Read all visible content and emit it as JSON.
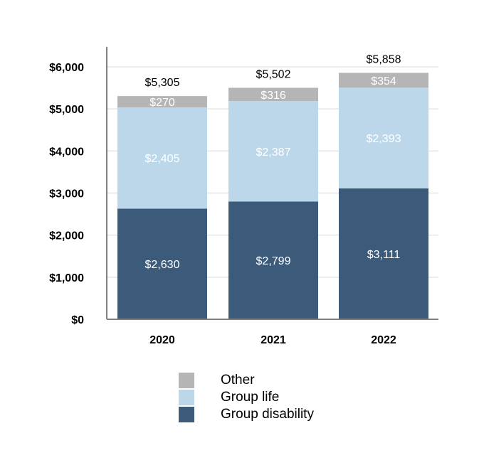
{
  "chart_data": {
    "type": "bar",
    "stacked": true,
    "categories": [
      "2020",
      "2021",
      "2022"
    ],
    "series": [
      {
        "name": "Group disability",
        "values": [
          2630,
          2799,
          3111
        ],
        "labels": [
          "$2,630",
          "$2,799",
          "$3,111"
        ],
        "color": "#3c5a7a"
      },
      {
        "name": "Group life",
        "values": [
          2405,
          2387,
          2393
        ],
        "labels": [
          "$2,405",
          "$2,387",
          "$2,393"
        ],
        "color": "#bcd7ea"
      },
      {
        "name": "Other",
        "values": [
          270,
          316,
          354
        ],
        "labels": [
          "$270",
          "$316",
          "$354"
        ],
        "color": "#b5b5b5"
      }
    ],
    "totals": [
      5305,
      5502,
      5858
    ],
    "total_labels": [
      "$5,305",
      "$5,502",
      "$5,858"
    ],
    "yticks": [
      0,
      1000,
      2000,
      3000,
      4000,
      5000,
      6000
    ],
    "ytick_labels": [
      "$0",
      "$1,000",
      "$2,000",
      "$3,000",
      "$4,000",
      "$5,000",
      "$6,000"
    ],
    "ylim": [
      0,
      6000
    ],
    "grid": true,
    "legend_position": "bottom-center",
    "legend_order": [
      "Other",
      "Group life",
      "Group disability"
    ],
    "title": "",
    "xlabel": "",
    "ylabel": ""
  }
}
